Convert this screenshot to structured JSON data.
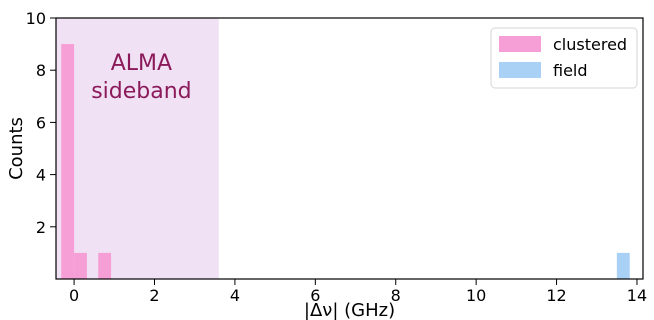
{
  "chart_data": {
    "type": "bar",
    "title": "",
    "xlabel": "|Δν| (GHz)",
    "ylabel": "Counts",
    "xlim": [
      -0.45,
      14.15
    ],
    "ylim": [
      0,
      10
    ],
    "xticks": [
      0,
      2,
      4,
      6,
      8,
      10,
      12,
      14
    ],
    "yticks": [
      2,
      4,
      6,
      8,
      10
    ],
    "grid": false,
    "legend_position": "top-right",
    "bin_width": 0.32,
    "series": [
      {
        "name": "clustered",
        "color": "#f59fd6",
        "bins": [
          {
            "x_start": -0.32,
            "value": 9
          },
          {
            "x_start": 0.0,
            "value": 1
          },
          {
            "x_start": 0.6,
            "value": 1
          }
        ]
      },
      {
        "name": "field",
        "color": "#a9d0f5",
        "bins": [
          {
            "x_start": 13.5,
            "value": 1
          }
        ]
      }
    ],
    "shaded_region": {
      "x_range": [
        -0.45,
        3.6
      ],
      "color": "#f1e1f4",
      "label_lines": [
        "ALMA",
        "sideband"
      ],
      "label_color": "#8b1a5a"
    }
  }
}
